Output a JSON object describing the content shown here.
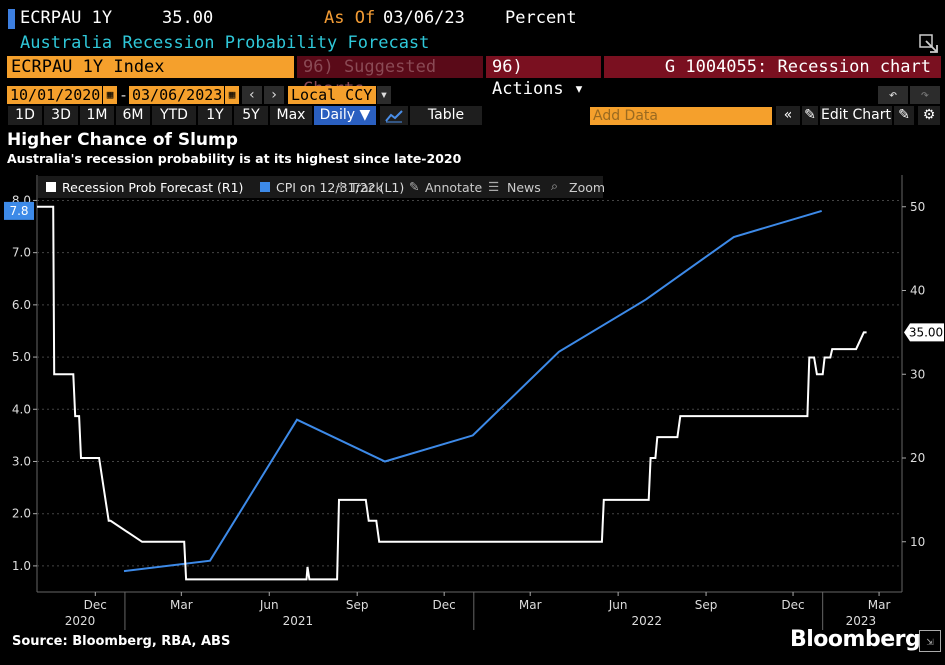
{
  "header": {
    "ticker": "ECRPAU 1Y",
    "value": "35.00",
    "as_of_label": "As Of",
    "as_of_date": "03/06/23",
    "unit": "Percent",
    "subtitle": "Australia Recession Probability Forecast"
  },
  "toolbar": {
    "index_field": "ECRPAU 1Y Index",
    "suggested_charts": "96) Suggested Charts",
    "actions": "96) Actions ▾",
    "chart_id": "G 1004055: Recession chart",
    "start_date": "10/01/2020",
    "end_date": "03/06/2023",
    "currency": "Local CCY",
    "periods": [
      "1D",
      "3D",
      "1M",
      "6M",
      "YTD",
      "1Y",
      "5Y",
      "Max"
    ],
    "frequency": "Daily ▼",
    "table_label": "Table",
    "add_data_placeholder": "Add Data",
    "edit_chart": "Edit Chart"
  },
  "chart_title": "Higher Chance of Slump",
  "chart_subtitle": "Australia's recession probability is at its highest since late-2020",
  "legend": {
    "items": [
      {
        "label": "Recession Prob Forecast (R1)",
        "color": "#ffffff"
      },
      {
        "label": "CPI on 12/31/22 (L1)",
        "color": "#3d8ae8"
      }
    ],
    "tools": [
      "Track",
      "Annotate",
      "News",
      "Zoom"
    ]
  },
  "source": "Source: Bloomberg, RBA, ABS",
  "brand": "Bloomberg",
  "chart_data": {
    "type": "line",
    "left_axis": {
      "ticks": [
        "1.0",
        "2.0",
        "3.0",
        "4.0",
        "5.0",
        "6.0",
        "7.0",
        "8.0"
      ],
      "range": [
        0.5,
        8.2
      ]
    },
    "right_axis": {
      "ticks": [
        "10",
        "20",
        "30",
        "40",
        "50"
      ],
      "range": [
        4,
        52
      ]
    },
    "x_ticks": [
      "Dec",
      "Mar",
      "Jun",
      "Sep",
      "Dec",
      "Mar",
      "Jun",
      "Sep",
      "Dec",
      "Mar"
    ],
    "x_years": [
      "2020",
      "2021",
      "2022",
      "2023"
    ],
    "left_last_label": "7.8",
    "right_last_label": "35.00",
    "series": [
      {
        "name": "CPI on 12/31/22 (L1)",
        "axis": "left",
        "color": "#3d8ae8",
        "x": [
          "2020-12-31",
          "2021-03-31",
          "2021-06-30",
          "2021-09-30",
          "2021-12-31",
          "2022-03-31",
          "2022-06-30",
          "2022-09-30",
          "2022-12-31"
        ],
        "values": [
          0.9,
          1.1,
          3.8,
          3.0,
          3.5,
          5.1,
          6.1,
          7.3,
          7.8
        ]
      },
      {
        "name": "Recession Prob Forecast (R1)",
        "axis": "right",
        "color": "#ffffff",
        "x": [
          "2020-10-01",
          "2020-10-18",
          "2020-10-19",
          "2020-11-08",
          "2020-11-10",
          "2020-11-14",
          "2020-11-16",
          "2020-11-21",
          "2020-12-01",
          "2020-12-05",
          "2020-12-15",
          "2020-12-17",
          "2021-01-19",
          "2021-02-19",
          "2021-03-04",
          "2021-03-06",
          "2021-07-10",
          "2021-07-11",
          "2021-07-13",
          "2021-08-11",
          "2021-08-13",
          "2021-09-10",
          "2021-09-13",
          "2021-09-21",
          "2021-09-24",
          "2021-10-15",
          "2022-05-15",
          "2022-05-17",
          "2022-07-03",
          "2022-07-05",
          "2022-07-10",
          "2022-07-12",
          "2022-08-02",
          "2022-08-05",
          "2022-12-16",
          "2022-12-18",
          "2022-12-23",
          "2022-12-26",
          "2023-01-01",
          "2023-01-03",
          "2023-01-09",
          "2023-01-11",
          "2023-02-03",
          "2023-02-05",
          "2023-02-13",
          "2023-02-16"
        ],
        "values": [
          50,
          50,
          30,
          30,
          25,
          25,
          20,
          20,
          20,
          20,
          12.5,
          12.5,
          10,
          10,
          10,
          5.5,
          5.5,
          7,
          5.5,
          5.5,
          15,
          15,
          12.5,
          12.5,
          10,
          10,
          10,
          15,
          15,
          20,
          20,
          22.5,
          22.5,
          25,
          25,
          32,
          32,
          30,
          30,
          32,
          32,
          33,
          33,
          33,
          35,
          35
        ]
      }
    ],
    "grid": true,
    "legend_position": "top-left"
  }
}
